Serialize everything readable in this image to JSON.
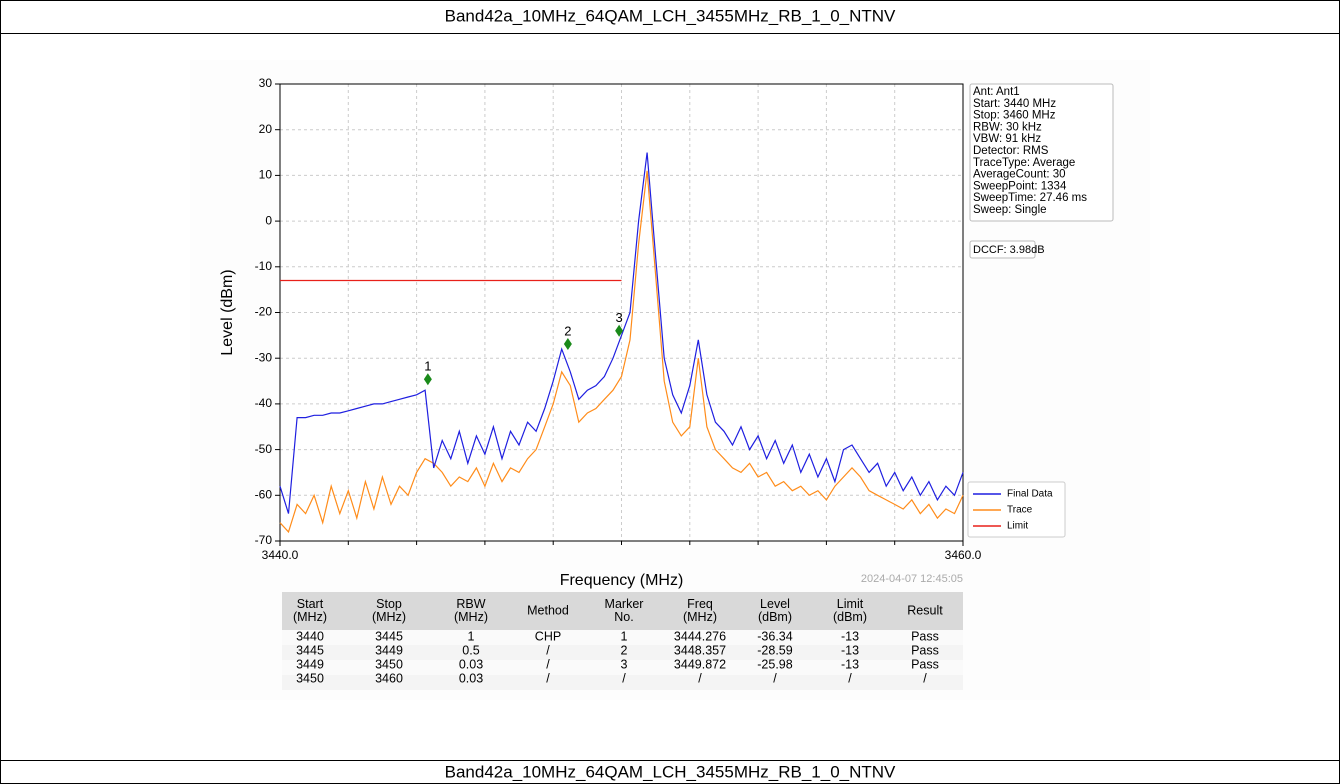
{
  "header": {
    "title": "Band42a_10MHz_64QAM_LCH_3455MHz_RB_1_0_NTNV"
  },
  "footer": {
    "title": "Band42a_10MHz_64QAM_LCH_3455MHz_RB_1_0_NTNV"
  },
  "chart_data": {
    "type": "line",
    "xlabel": "Frequency (MHz)",
    "ylabel": "Level (dBm)",
    "xlim": [
      3440,
      3460
    ],
    "xticks": [
      {
        "value": 3440,
        "label": "3440.0"
      },
      {
        "value": 3460,
        "label": "3460.0"
      }
    ],
    "xminor": [
      3442,
      3444,
      3446,
      3448,
      3450,
      3452,
      3454,
      3456,
      3458
    ],
    "ylim": [
      -70,
      30
    ],
    "yticks": [
      -70,
      -60,
      -50,
      -40,
      -30,
      -20,
      -10,
      0,
      10,
      20,
      30
    ],
    "grid": true,
    "legend": "lower right",
    "x": [
      3440,
      3440.25,
      3440.5,
      3440.75,
      3441,
      3441.25,
      3441.5,
      3441.75,
      3442,
      3442.25,
      3442.5,
      3442.75,
      3443,
      3443.25,
      3443.5,
      3443.75,
      3444,
      3444.25,
      3444.5,
      3444.75,
      3445,
      3445.25,
      3445.5,
      3445.75,
      3446,
      3446.25,
      3446.5,
      3446.75,
      3447,
      3447.25,
      3447.5,
      3447.75,
      3448,
      3448.25,
      3448.5,
      3448.75,
      3449,
      3449.25,
      3449.5,
      3449.75,
      3450,
      3450.25,
      3450.5,
      3450.75,
      3451,
      3451.25,
      3451.5,
      3451.75,
      3452,
      3452.25,
      3452.5,
      3452.75,
      3453,
      3453.25,
      3453.5,
      3453.75,
      3454,
      3454.25,
      3454.5,
      3454.75,
      3455,
      3455.25,
      3455.5,
      3455.75,
      3456,
      3456.25,
      3456.5,
      3456.75,
      3457,
      3457.25,
      3457.5,
      3457.75,
      3458,
      3458.25,
      3458.5,
      3458.75,
      3459,
      3459.25,
      3459.5,
      3459.75,
      3460
    ],
    "series": [
      {
        "name": "Trace",
        "color": "#ff8c1a",
        "values": [
          -66,
          -68,
          -62,
          -64,
          -60,
          -66,
          -58,
          -64,
          -59,
          -65,
          -57,
          -63,
          -56,
          -62,
          -58,
          -60,
          -55,
          -52,
          -53,
          -55,
          -58,
          -56,
          -57,
          -54,
          -58,
          -53,
          -57,
          -54,
          -55,
          -52,
          -50,
          -45,
          -40,
          -33,
          -36,
          -44,
          -42,
          -41,
          -39,
          -37,
          -34,
          -26,
          -5,
          11,
          -12,
          -35,
          -44,
          -47,
          -45,
          -30,
          -45,
          -50,
          -52,
          -54,
          -55,
          -53,
          -56,
          -55,
          -58,
          -57,
          -59,
          -58,
          -60,
          -59,
          -61,
          -58,
          -56,
          -54,
          -56,
          -59,
          -60,
          -61,
          -62,
          -63,
          -61,
          -64,
          -62,
          -65,
          -63,
          -64,
          -60
        ]
      },
      {
        "name": "Final Data",
        "color": "#1f1fe0",
        "values": [
          -58,
          -64,
          -43,
          -43,
          -42.5,
          -42.5,
          -42,
          -42,
          -41.5,
          -41,
          -40.5,
          -40,
          -40,
          -39.5,
          -39,
          -38.5,
          -38,
          -37,
          -54,
          -48,
          -52,
          -46,
          -53,
          -47,
          -51,
          -45,
          -52,
          -46,
          -49,
          -44,
          -46,
          -41,
          -35,
          -28,
          -33,
          -39,
          -37,
          -36,
          -34,
          -30,
          -25,
          -20,
          0,
          15,
          -8,
          -30,
          -38,
          -42,
          -36,
          -26,
          -38,
          -44,
          -46,
          -49,
          -45,
          -50,
          -47,
          -52,
          -48,
          -53,
          -49,
          -55,
          -51,
          -56,
          -52,
          -57,
          -50,
          -49,
          -52,
          -55,
          -53,
          -58,
          -55,
          -59,
          -56,
          -60,
          -57,
          -61,
          -58,
          -60,
          -55
        ]
      },
      {
        "name": "Limit",
        "color": "#e8201a",
        "values": [
          -13,
          -13,
          -13,
          -13,
          -13,
          -13,
          -13,
          -13,
          -13,
          -13,
          -13,
          -13,
          -13,
          -13,
          -13,
          -13,
          -13,
          -13,
          -13,
          -13,
          -13,
          -13,
          -13,
          -13,
          -13,
          -13,
          -13,
          -13,
          -13,
          -13,
          -13,
          -13,
          -13,
          -13,
          -13,
          -13,
          -13,
          -13,
          -13,
          -13,
          -13,
          null,
          null,
          null,
          null,
          null,
          null,
          null,
          null,
          null,
          null,
          null,
          null,
          null,
          null,
          null,
          null,
          null,
          null,
          null,
          null,
          null,
          null,
          null,
          null,
          null,
          null,
          null,
          null,
          null,
          null,
          null,
          null,
          null,
          null,
          null,
          null,
          null,
          null,
          null,
          null
        ]
      }
    ],
    "legend_order": [
      "Final Data",
      "Trace",
      "Limit"
    ],
    "markers": [
      {
        "label": "1",
        "x": 3444.33,
        "y": -34.6,
        "color": "#1a8a1a"
      },
      {
        "label": "2",
        "x": 3448.43,
        "y": -26.9,
        "color": "#1a8a1a"
      },
      {
        "label": "3",
        "x": 3449.93,
        "y": -24.0,
        "color": "#1a8a1a"
      }
    ],
    "info": [
      "Ant: Ant1",
      "Start: 3440 MHz",
      "Stop: 3460 MHz",
      "RBW: 30 kHz",
      "VBW: 91 kHz",
      "Detector: RMS",
      "TraceType: Average",
      "AverageCount: 30",
      "SweepPoint: 1334",
      "SweepTime: 27.46 ms",
      "Sweep: Single"
    ],
    "dccf": "DCCF: 3.98dB",
    "timestamp": "2024-04-07 12:45:05"
  },
  "table": {
    "columns": [
      [
        "Start",
        "(MHz)"
      ],
      [
        "Stop",
        "(MHz)"
      ],
      [
        "RBW",
        "(MHz)"
      ],
      [
        "Method"
      ],
      [
        "Marker",
        "No."
      ],
      [
        "Freq",
        "(MHz)"
      ],
      [
        "Level",
        "(dBm)"
      ],
      [
        "Limit",
        "(dBm)"
      ],
      [
        "Result"
      ]
    ],
    "rows": [
      [
        "3440",
        "3445",
        "1",
        "CHP",
        "1",
        "3444.276",
        "-36.34",
        "-13",
        "Pass"
      ],
      [
        "3445",
        "3449",
        "0.5",
        "/",
        "2",
        "3448.357",
        "-28.59",
        "-13",
        "Pass"
      ],
      [
        "3449",
        "3450",
        "0.03",
        "/",
        "3",
        "3449.872",
        "-25.98",
        "-13",
        "Pass"
      ],
      [
        "3450",
        "3460",
        "0.03",
        "/",
        "/",
        "/",
        "/",
        "/",
        "/"
      ]
    ]
  }
}
